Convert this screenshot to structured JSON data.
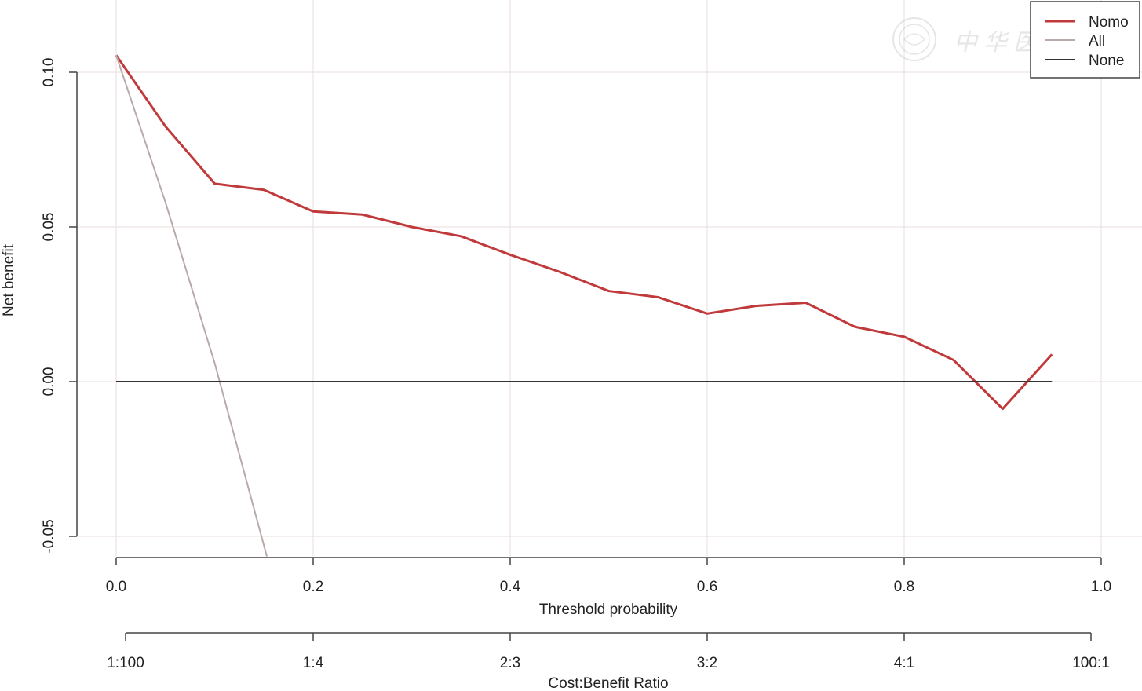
{
  "chart_data": {
    "type": "line",
    "title": "",
    "xlabel": "Threshold probability",
    "ylabel": "Net benefit",
    "xlim": [
      0.0,
      1.0
    ],
    "ylim": [
      -0.05,
      0.1
    ],
    "x_ticks": [
      "0.0",
      "0.2",
      "0.4",
      "0.6",
      "0.8",
      "1.0"
    ],
    "y_ticks": [
      "-0.05",
      "0.00",
      "0.05",
      "0.10"
    ],
    "secondary_axis": {
      "label": "Cost:Benefit Ratio",
      "ticks": [
        "1:100",
        "1:4",
        "2:3",
        "3:2",
        "4:1",
        "100:1"
      ]
    },
    "grid": true,
    "legend": {
      "position": "top-right",
      "entries": [
        "Nomo",
        "All",
        "None"
      ]
    },
    "series": [
      {
        "name": "Nomo",
        "color": "#c0393b",
        "x": [
          0.0,
          0.05,
          0.1,
          0.15,
          0.2,
          0.25,
          0.3,
          0.35,
          0.4,
          0.45,
          0.5,
          0.55,
          0.6,
          0.65,
          0.7,
          0.75,
          0.8,
          0.85,
          0.9,
          0.95
        ],
        "y": [
          0.1055,
          0.0825,
          0.064,
          0.062,
          0.055,
          0.054,
          0.05,
          0.047,
          0.041,
          0.0355,
          0.0293,
          0.0273,
          0.022,
          0.0245,
          0.0255,
          0.0177,
          0.0145,
          0.007,
          -0.0088,
          0.0088
        ]
      },
      {
        "name": "All",
        "color": "#b9aaaa",
        "x": [
          0.0,
          0.05,
          0.1,
          0.153
        ],
        "y": [
          0.1055,
          0.058,
          0.006,
          -0.0565
        ]
      },
      {
        "name": "None",
        "color": "#333333",
        "x": [
          0.0,
          0.95
        ],
        "y": [
          0.0,
          0.0
        ]
      }
    ]
  },
  "watermark": {
    "text": "中华医学会"
  }
}
